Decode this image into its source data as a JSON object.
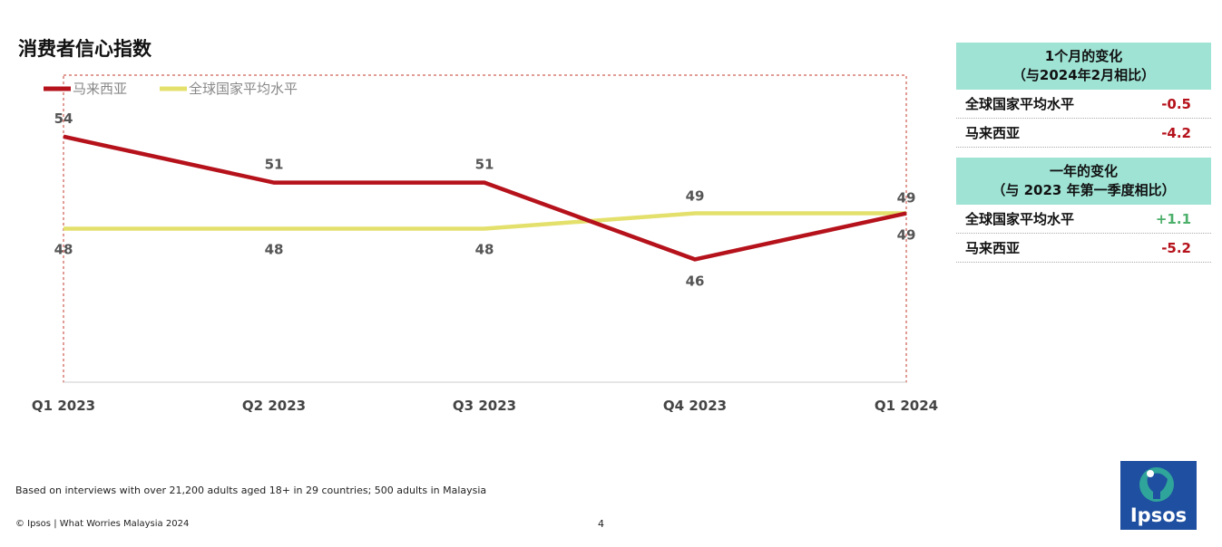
{
  "chart_data": {
    "type": "line",
    "title": "消费者信心指数",
    "categories": [
      "Q1 2023",
      "Q2 2023",
      "Q3 2023",
      "Q4 2023",
      "Q1 2024"
    ],
    "series": [
      {
        "name": "马来西亚",
        "values": [
          54,
          51,
          51,
          46,
          49
        ],
        "color": "#b5121b"
      },
      {
        "name": "全球国家平均水平",
        "values": [
          48,
          48,
          48,
          49,
          49
        ],
        "color": "#e4e06c"
      }
    ],
    "ylim": [
      38,
      58
    ],
    "grid": false,
    "legend": "top-left"
  },
  "monthly_change": {
    "title_line1": "1个月的变化",
    "title_line2": "（与2024年2月相比）",
    "rows": [
      {
        "label": "全球国家平均水平",
        "value": "-0.5"
      },
      {
        "label": "马来西亚",
        "value": "-4.2"
      }
    ]
  },
  "yearly_change": {
    "title_line1": "一年的变化",
    "title_line2": "（与 2023 年第一季度相比）",
    "rows": [
      {
        "label": "全球国家平均水平",
        "value": "+1.1"
      },
      {
        "label": "马来西亚",
        "value": "-5.2"
      }
    ]
  },
  "footnote": "Based on interviews with over 21,200 adults aged 18+ in 29 countries; 500 adults in Malaysia",
  "copyright": "© Ipsos | What Worries Malaysia 2024",
  "page_number": "4",
  "logo_text": "Ipsos"
}
